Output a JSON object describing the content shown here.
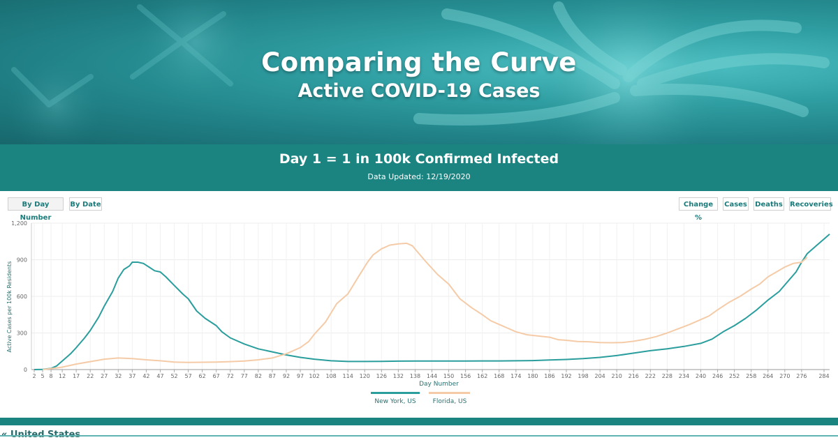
{
  "header": {
    "title": "Comparing the Curve",
    "subtitle": "Active COVID-19 Cases"
  },
  "band": {
    "title": "Day 1 = 1 in 100k Confirmed Infected",
    "updated": "Data Updated: 12/19/2020"
  },
  "controls": {
    "by_day_number": "By Day Number",
    "by_date": "By Date",
    "change_pct": "Change %",
    "cases": "Cases",
    "deaths": "Deaths",
    "recoveries": "Recoveries"
  },
  "footer": {
    "text": "« United States"
  },
  "colors": {
    "teal": "#2a9d9d",
    "peach": "#f5cba7",
    "band": "#1b8480"
  },
  "chart_data": {
    "type": "line",
    "xlabel": "Day Number",
    "ylabel": "Active Cases per 100k Residents",
    "xlim": [
      1,
      286
    ],
    "ylim": [
      0,
      1200
    ],
    "y_ticks": [
      0,
      300,
      600,
      900,
      1200
    ],
    "y_tick_labels": [
      "0",
      "300",
      "600",
      "900",
      "1,200"
    ],
    "x_ticks": [
      2,
      5,
      8,
      12,
      17,
      22,
      27,
      32,
      37,
      42,
      47,
      52,
      57,
      62,
      67,
      72,
      77,
      82,
      87,
      92,
      97,
      102,
      108,
      114,
      120,
      126,
      132,
      138,
      144,
      150,
      156,
      162,
      168,
      174,
      180,
      186,
      192,
      198,
      204,
      210,
      216,
      222,
      228,
      234,
      240,
      246,
      252,
      258,
      264,
      270,
      276,
      284
    ],
    "grid": true,
    "legend_position": "bottom-center",
    "series": [
      {
        "name": "New York, US",
        "color": "#2a9d9d",
        "points": [
          [
            2,
            0
          ],
          [
            5,
            2
          ],
          [
            8,
            10
          ],
          [
            10,
            30
          ],
          [
            12,
            70
          ],
          [
            15,
            130
          ],
          [
            17,
            180
          ],
          [
            20,
            260
          ],
          [
            22,
            320
          ],
          [
            25,
            430
          ],
          [
            27,
            520
          ],
          [
            30,
            640
          ],
          [
            32,
            750
          ],
          [
            34,
            820
          ],
          [
            36,
            850
          ],
          [
            37,
            880
          ],
          [
            39,
            880
          ],
          [
            41,
            870
          ],
          [
            43,
            840
          ],
          [
            45,
            810
          ],
          [
            47,
            800
          ],
          [
            49,
            760
          ],
          [
            52,
            690
          ],
          [
            55,
            620
          ],
          [
            57,
            580
          ],
          [
            60,
            480
          ],
          [
            63,
            420
          ],
          [
            67,
            360
          ],
          [
            69,
            310
          ],
          [
            72,
            260
          ],
          [
            77,
            210
          ],
          [
            82,
            170
          ],
          [
            87,
            145
          ],
          [
            92,
            120
          ],
          [
            97,
            100
          ],
          [
            102,
            85
          ],
          [
            108,
            72
          ],
          [
            114,
            66
          ],
          [
            120,
            66
          ],
          [
            126,
            67
          ],
          [
            132,
            69
          ],
          [
            138,
            70
          ],
          [
            144,
            70
          ],
          [
            150,
            70
          ],
          [
            156,
            70
          ],
          [
            162,
            71
          ],
          [
            168,
            71
          ],
          [
            174,
            72
          ],
          [
            180,
            74
          ],
          [
            186,
            78
          ],
          [
            192,
            83
          ],
          [
            198,
            90
          ],
          [
            204,
            100
          ],
          [
            210,
            115
          ],
          [
            216,
            135
          ],
          [
            222,
            155
          ],
          [
            228,
            170
          ],
          [
            234,
            190
          ],
          [
            240,
            215
          ],
          [
            244,
            250
          ],
          [
            248,
            310
          ],
          [
            252,
            360
          ],
          [
            256,
            420
          ],
          [
            260,
            490
          ],
          [
            264,
            570
          ],
          [
            268,
            640
          ],
          [
            271,
            720
          ],
          [
            274,
            800
          ],
          [
            276,
            880
          ],
          [
            278,
            950
          ],
          [
            281,
            1010
          ],
          [
            284,
            1070
          ],
          [
            286,
            1110
          ]
        ]
      },
      {
        "name": "Florida, US",
        "color": "#f5cba7",
        "points": [
          [
            5,
            0
          ],
          [
            8,
            8
          ],
          [
            12,
            20
          ],
          [
            17,
            45
          ],
          [
            22,
            65
          ],
          [
            27,
            85
          ],
          [
            32,
            95
          ],
          [
            37,
            90
          ],
          [
            42,
            80
          ],
          [
            47,
            72
          ],
          [
            52,
            62
          ],
          [
            57,
            58
          ],
          [
            62,
            60
          ],
          [
            67,
            62
          ],
          [
            72,
            65
          ],
          [
            77,
            70
          ],
          [
            82,
            80
          ],
          [
            87,
            95
          ],
          [
            92,
            130
          ],
          [
            97,
            180
          ],
          [
            100,
            230
          ],
          [
            102,
            290
          ],
          [
            106,
            390
          ],
          [
            110,
            540
          ],
          [
            114,
            620
          ],
          [
            118,
            770
          ],
          [
            121,
            880
          ],
          [
            123,
            940
          ],
          [
            126,
            990
          ],
          [
            129,
            1020
          ],
          [
            132,
            1030
          ],
          [
            135,
            1035
          ],
          [
            137,
            1015
          ],
          [
            139,
            960
          ],
          [
            142,
            880
          ],
          [
            146,
            780
          ],
          [
            150,
            700
          ],
          [
            154,
            580
          ],
          [
            158,
            510
          ],
          [
            162,
            450
          ],
          [
            165,
            400
          ],
          [
            168,
            370
          ],
          [
            171,
            340
          ],
          [
            174,
            310
          ],
          [
            178,
            285
          ],
          [
            182,
            275
          ],
          [
            186,
            265
          ],
          [
            189,
            245
          ],
          [
            192,
            240
          ],
          [
            196,
            230
          ],
          [
            200,
            228
          ],
          [
            204,
            222
          ],
          [
            208,
            220
          ],
          [
            212,
            222
          ],
          [
            216,
            232
          ],
          [
            220,
            248
          ],
          [
            224,
            270
          ],
          [
            228,
            300
          ],
          [
            232,
            335
          ],
          [
            236,
            370
          ],
          [
            240,
            410
          ],
          [
            243,
            440
          ],
          [
            246,
            490
          ],
          [
            250,
            550
          ],
          [
            254,
            600
          ],
          [
            258,
            660
          ],
          [
            261,
            700
          ],
          [
            264,
            760
          ],
          [
            267,
            800
          ],
          [
            270,
            840
          ],
          [
            273,
            870
          ],
          [
            276,
            880
          ],
          [
            278,
            920
          ]
        ]
      }
    ]
  }
}
